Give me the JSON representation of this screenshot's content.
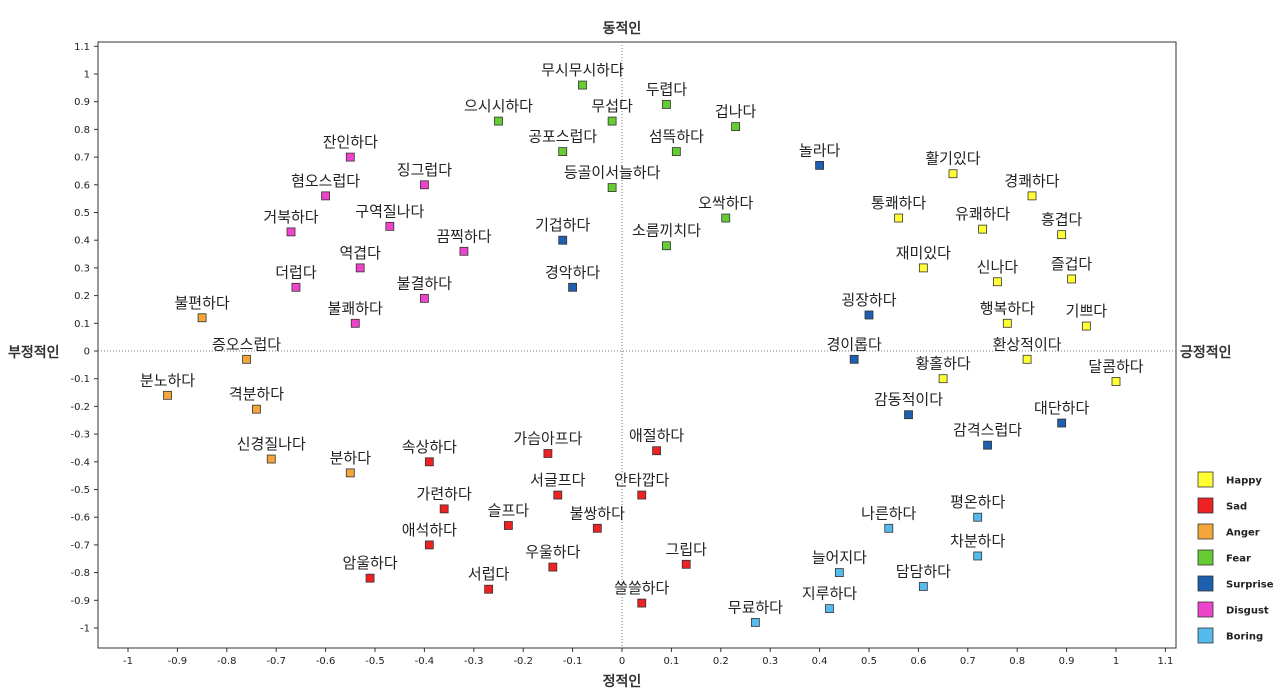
{
  "chart_data": {
    "type": "scatter",
    "title": "",
    "labels": {
      "top": "동적인",
      "bottom": "정적인",
      "left": "부정적인",
      "right": "긍정적인"
    },
    "xlim": [
      -1.1,
      1.1
    ],
    "ylim": [
      -1.1,
      1.1
    ],
    "xticks": [
      "-1",
      "-0.9",
      "-0.8",
      "-0.7",
      "-0.6",
      "-0.5",
      "-0.4",
      "-0.3",
      "-0.2",
      "-0.1",
      "0",
      "0.1",
      "0.2",
      "0.3",
      "0.4",
      "0.5",
      "0.6",
      "0.7",
      "0.8",
      "0.9",
      "1",
      "1.1"
    ],
    "yticks": [
      "1.1",
      "1",
      "0.9",
      "0.8",
      "0.7",
      "0.6",
      "0.5",
      "0.4",
      "0.3",
      "0.2",
      "0.1",
      "0",
      "-0.1",
      "-0.2",
      "-0.3",
      "-0.4",
      "-0.5",
      "-0.6",
      "-0.7",
      "-0.8",
      "-0.9",
      "-1"
    ],
    "grid": false,
    "legend_position": "right",
    "series": [
      {
        "name": "Happy",
        "color": "#ffff33",
        "points": [
          {
            "label": "활기있다",
            "x": 0.67,
            "y": 0.64
          },
          {
            "label": "경쾌하다",
            "x": 0.83,
            "y": 0.56
          },
          {
            "label": "통쾌하다",
            "x": 0.56,
            "y": 0.48
          },
          {
            "label": "유쾌하다",
            "x": 0.73,
            "y": 0.44
          },
          {
            "label": "흥겹다",
            "x": 0.89,
            "y": 0.42
          },
          {
            "label": "재미있다",
            "x": 0.61,
            "y": 0.3
          },
          {
            "label": "신나다",
            "x": 0.76,
            "y": 0.25
          },
          {
            "label": "즐겁다",
            "x": 0.91,
            "y": 0.26
          },
          {
            "label": "행복하다",
            "x": 0.78,
            "y": 0.1
          },
          {
            "label": "기쁘다",
            "x": 0.94,
            "y": 0.09
          },
          {
            "label": "환상적이다",
            "x": 0.82,
            "y": -0.03
          },
          {
            "label": "황홀하다",
            "x": 0.65,
            "y": -0.1
          },
          {
            "label": "달콤하다",
            "x": 1.0,
            "y": -0.11
          }
        ]
      },
      {
        "name": "Sad",
        "color": "#ee2222",
        "points": [
          {
            "label": "가슴아프다",
            "x": -0.15,
            "y": -0.37
          },
          {
            "label": "애절하다",
            "x": 0.07,
            "y": -0.36
          },
          {
            "label": "속상하다",
            "x": -0.39,
            "y": -0.4
          },
          {
            "label": "서글프다",
            "x": -0.13,
            "y": -0.52
          },
          {
            "label": "안타깝다",
            "x": 0.04,
            "y": -0.52
          },
          {
            "label": "가련하다",
            "x": -0.36,
            "y": -0.57
          },
          {
            "label": "슬프다",
            "x": -0.23,
            "y": -0.63
          },
          {
            "label": "불쌍하다",
            "x": -0.05,
            "y": -0.64
          },
          {
            "label": "애석하다",
            "x": -0.39,
            "y": -0.7
          },
          {
            "label": "우울하다",
            "x": -0.14,
            "y": -0.78
          },
          {
            "label": "그립다",
            "x": 0.13,
            "y": -0.77
          },
          {
            "label": "암울하다",
            "x": -0.51,
            "y": -0.82
          },
          {
            "label": "서럽다",
            "x": -0.27,
            "y": -0.86
          },
          {
            "label": "쓸쓸하다",
            "x": 0.04,
            "y": -0.91
          }
        ]
      },
      {
        "name": "Anger",
        "color": "#f4a63a",
        "points": [
          {
            "label": "불편하다",
            "x": -0.85,
            "y": 0.12
          },
          {
            "label": "증오스럽다",
            "x": -0.76,
            "y": -0.03
          },
          {
            "label": "분노하다",
            "x": -0.92,
            "y": -0.16
          },
          {
            "label": "격분하다",
            "x": -0.74,
            "y": -0.21
          },
          {
            "label": "신경질나다",
            "x": -0.71,
            "y": -0.39
          },
          {
            "label": "분하다",
            "x": -0.55,
            "y": -0.44
          }
        ]
      },
      {
        "name": "Fear",
        "color": "#66cc33",
        "points": [
          {
            "label": "무시무시하다",
            "x": -0.08,
            "y": 0.96
          },
          {
            "label": "두렵다",
            "x": 0.09,
            "y": 0.89
          },
          {
            "label": "으시시하다",
            "x": -0.25,
            "y": 0.83
          },
          {
            "label": "무섭다",
            "x": -0.02,
            "y": 0.83
          },
          {
            "label": "겁나다",
            "x": 0.23,
            "y": 0.81
          },
          {
            "label": "공포스럽다",
            "x": -0.12,
            "y": 0.72
          },
          {
            "label": "섬뜩하다",
            "x": 0.11,
            "y": 0.72
          },
          {
            "label": "등골이서늘하다",
            "x": -0.02,
            "y": 0.59
          },
          {
            "label": "오싹하다",
            "x": 0.21,
            "y": 0.48
          },
          {
            "label": "소름끼치다",
            "x": 0.09,
            "y": 0.38
          }
        ]
      },
      {
        "name": "Surprise",
        "color": "#1f5fb0",
        "points": [
          {
            "label": "놀라다",
            "x": 0.4,
            "y": 0.67
          },
          {
            "label": "기겁하다",
            "x": -0.12,
            "y": 0.4
          },
          {
            "label": "경악하다",
            "x": -0.1,
            "y": 0.23
          },
          {
            "label": "굉장하다",
            "x": 0.5,
            "y": 0.13
          },
          {
            "label": "경이롭다",
            "x": 0.47,
            "y": -0.03
          },
          {
            "label": "감동적이다",
            "x": 0.58,
            "y": -0.23
          },
          {
            "label": "대단하다",
            "x": 0.89,
            "y": -0.26
          },
          {
            "label": "감격스럽다",
            "x": 0.74,
            "y": -0.34
          }
        ]
      },
      {
        "name": "Disgust",
        "color": "#ee44cc",
        "points": [
          {
            "label": "잔인하다",
            "x": -0.55,
            "y": 0.7
          },
          {
            "label": "징그럽다",
            "x": -0.4,
            "y": 0.6
          },
          {
            "label": "혐오스럽다",
            "x": -0.6,
            "y": 0.56
          },
          {
            "label": "구역질나다",
            "x": -0.47,
            "y": 0.45
          },
          {
            "label": "거북하다",
            "x": -0.67,
            "y": 0.43
          },
          {
            "label": "끔찍하다",
            "x": -0.32,
            "y": 0.36
          },
          {
            "label": "역겹다",
            "x": -0.53,
            "y": 0.3
          },
          {
            "label": "더럽다",
            "x": -0.66,
            "y": 0.23
          },
          {
            "label": "불결하다",
            "x": -0.4,
            "y": 0.19
          },
          {
            "label": "불쾌하다",
            "x": -0.54,
            "y": 0.1
          }
        ]
      },
      {
        "name": "Boring",
        "color": "#55bbee",
        "points": [
          {
            "label": "평온하다",
            "x": 0.72,
            "y": -0.6
          },
          {
            "label": "나른하다",
            "x": 0.54,
            "y": -0.64
          },
          {
            "label": "차분하다",
            "x": 0.72,
            "y": -0.74
          },
          {
            "label": "늘어지다",
            "x": 0.44,
            "y": -0.8
          },
          {
            "label": "담담하다",
            "x": 0.61,
            "y": -0.85
          },
          {
            "label": "지루하다",
            "x": 0.42,
            "y": -0.93
          },
          {
            "label": "무료하다",
            "x": 0.27,
            "y": -0.98
          }
        ]
      }
    ]
  }
}
